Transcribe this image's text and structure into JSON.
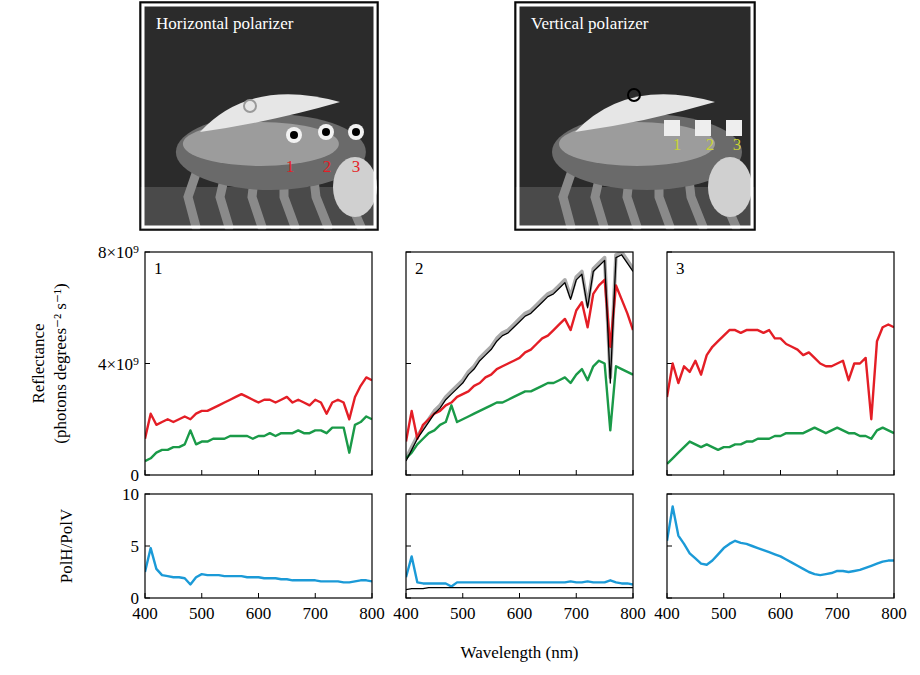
{
  "photos": [
    {
      "title": "Horizontal polarizer",
      "labels": [
        "1",
        "2",
        "3"
      ],
      "color": "#e41e26"
    },
    {
      "title": "Vertical polarizer",
      "labels": [
        "1",
        "2",
        "3"
      ],
      "color": "#c9d236"
    }
  ],
  "chart_data": [
    {
      "type": "line",
      "title": "1",
      "ylabel": "Reflectance (photons degrees⁻² s⁻¹)",
      "tick_labels": "y",
      "x": [
        400,
        410,
        420,
        430,
        440,
        450,
        460,
        470,
        480,
        490,
        500,
        510,
        520,
        530,
        540,
        550,
        560,
        570,
        580,
        590,
        600,
        610,
        620,
        630,
        640,
        650,
        660,
        670,
        680,
        690,
        700,
        710,
        720,
        730,
        740,
        750,
        760,
        770,
        780,
        790,
        800
      ],
      "xlim": [
        400,
        800
      ],
      "xticks": [
        400,
        500,
        600,
        700,
        800
      ],
      "ylim": [
        0,
        8000000000.0
      ],
      "yticks": [
        0,
        {
          "value": 4000000000.0,
          "label": "4×10⁹"
        },
        {
          "value": 8000000000.0,
          "label": "8×10⁹"
        }
      ],
      "series": [
        {
          "color": "#e41e26",
          "values": [
            1300000000.0,
            2200000000.0,
            1800000000.0,
            1900000000.0,
            2000000000.0,
            1900000000.0,
            2000000000.0,
            2100000000.0,
            2000000000.0,
            2200000000.0,
            2300000000.0,
            2300000000.0,
            2400000000.0,
            2500000000.0,
            2600000000.0,
            2700000000.0,
            2800000000.0,
            2900000000.0,
            2800000000.0,
            2700000000.0,
            2600000000.0,
            2700000000.0,
            2700000000.0,
            2600000000.0,
            2700000000.0,
            2800000000.0,
            2600000000.0,
            2700000000.0,
            2600000000.0,
            2500000000.0,
            2700000000.0,
            2600000000.0,
            2200000000.0,
            2600000000.0,
            2700000000.0,
            2600000000.0,
            2000000000.0,
            2800000000.0,
            3200000000.0,
            3500000000.0,
            3400000000.0
          ]
        },
        {
          "color": "#1a9a48",
          "values": [
            500000000.0,
            600000000.0,
            800000000.0,
            900000000.0,
            900000000.0,
            1000000000.0,
            1000000000.0,
            1100000000.0,
            1600000000.0,
            1100000000.0,
            1200000000.0,
            1200000000.0,
            1300000000.0,
            1300000000.0,
            1300000000.0,
            1400000000.0,
            1400000000.0,
            1400000000.0,
            1400000000.0,
            1300000000.0,
            1400000000.0,
            1400000000.0,
            1500000000.0,
            1400000000.0,
            1500000000.0,
            1500000000.0,
            1500000000.0,
            1600000000.0,
            1500000000.0,
            1500000000.0,
            1600000000.0,
            1600000000.0,
            1500000000.0,
            1700000000.0,
            1700000000.0,
            1700000000.0,
            800000000.0,
            1800000000.0,
            1900000000.0,
            2100000000.0,
            2000000000.0
          ]
        }
      ]
    },
    {
      "type": "line",
      "title": "2",
      "tick_labels": false,
      "x": [
        400,
        410,
        420,
        430,
        440,
        450,
        460,
        470,
        480,
        490,
        500,
        510,
        520,
        530,
        540,
        550,
        560,
        570,
        580,
        590,
        600,
        610,
        620,
        630,
        640,
        650,
        660,
        670,
        680,
        690,
        700,
        710,
        720,
        730,
        740,
        750,
        760,
        770,
        780,
        790,
        800
      ],
      "xlim": [
        400,
        800
      ],
      "xticks": [
        400,
        500,
        600,
        700,
        800
      ],
      "ylim": [
        0,
        8000000000.0
      ],
      "yticks": [
        0,
        4000000000.0,
        8000000000.0
      ],
      "series": [
        {
          "color": "#aaaaaa",
          "values": [
            600000000.0,
            1000000000.0,
            1400000000.0,
            1700000000.0,
            2000000000.0,
            2300000000.0,
            2500000000.0,
            2800000000.0,
            3000000000.0,
            3200000000.0,
            3400000000.0,
            3700000000.0,
            3900000000.0,
            4200000000.0,
            4400000000.0,
            4600000000.0,
            4900000000.0,
            5100000000.0,
            5200000000.0,
            5400000000.0,
            5600000000.0,
            5800000000.0,
            5900000000.0,
            6100000000.0,
            6300000000.0,
            6500000000.0,
            6600000000.0,
            6800000000.0,
            7000000000.0,
            6400000000.0,
            7100000000.0,
            7300000000.0,
            6100000000.0,
            7400000000.0,
            7600000000.0,
            7800000000.0,
            3500000000.0,
            7900000000.0,
            8000000000.0,
            7700000000.0,
            7400000000.0
          ]
        },
        {
          "color": "#e41e26",
          "values": [
            1200000000.0,
            2300000000.0,
            1300000000.0,
            1800000000.0,
            2000000000.0,
            2200000000.0,
            2300000000.0,
            2500000000.0,
            2600000000.0,
            2800000000.0,
            2900000000.0,
            3000000000.0,
            3200000000.0,
            3300000000.0,
            3500000000.0,
            3600000000.0,
            3800000000.0,
            3900000000.0,
            4000000000.0,
            4100000000.0,
            4200000000.0,
            4400000000.0,
            4500000000.0,
            4700000000.0,
            4900000000.0,
            5000000000.0,
            5200000000.0,
            5400000000.0,
            5600000000.0,
            5200000000.0,
            5900000000.0,
            6200000000.0,
            5300000000.0,
            6500000000.0,
            6800000000.0,
            7000000000.0,
            4600000000.0,
            6800000000.0,
            6300000000.0,
            5800000000.0,
            5200000000.0
          ]
        },
        {
          "color": "#1a9a48",
          "values": [
            600000000.0,
            800000000.0,
            1100000000.0,
            1300000000.0,
            1500000000.0,
            1600000000.0,
            1800000000.0,
            1900000000.0,
            2500000000.0,
            1900000000.0,
            2000000000.0,
            2100000000.0,
            2200000000.0,
            2300000000.0,
            2400000000.0,
            2500000000.0,
            2600000000.0,
            2600000000.0,
            2700000000.0,
            2800000000.0,
            2900000000.0,
            3000000000.0,
            3000000000.0,
            3100000000.0,
            3200000000.0,
            3300000000.0,
            3300000000.0,
            3400000000.0,
            3500000000.0,
            3300000000.0,
            3600000000.0,
            3800000000.0,
            3400000000.0,
            3900000000.0,
            4100000000.0,
            4000000000.0,
            1600000000.0,
            3900000000.0,
            3800000000.0,
            3700000000.0,
            3600000000.0
          ]
        },
        {
          "color": "#000000",
          "values": [
            500000000.0,
            900000000.0,
            1300000000.0,
            1600000000.0,
            1900000000.0,
            2200000000.0,
            2400000000.0,
            2700000000.0,
            2900000000.0,
            3100000000.0,
            3300000000.0,
            3600000000.0,
            3800000000.0,
            4100000000.0,
            4300000000.0,
            4500000000.0,
            4800000000.0,
            5000000000.0,
            5100000000.0,
            5300000000.0,
            5500000000.0,
            5700000000.0,
            5800000000.0,
            6000000000.0,
            6200000000.0,
            6400000000.0,
            6500000000.0,
            6700000000.0,
            6900000000.0,
            6300000000.0,
            7000000000.0,
            7200000000.0,
            6000000000.0,
            7300000000.0,
            7500000000.0,
            7700000000.0,
            3300000000.0,
            7800000000.0,
            7900000000.0,
            7600000000.0,
            7300000000.0
          ]
        }
      ]
    },
    {
      "type": "line",
      "title": "3",
      "tick_labels": false,
      "x": [
        400,
        410,
        420,
        430,
        440,
        450,
        460,
        470,
        480,
        490,
        500,
        510,
        520,
        530,
        540,
        550,
        560,
        570,
        580,
        590,
        600,
        610,
        620,
        630,
        640,
        650,
        660,
        670,
        680,
        690,
        700,
        710,
        720,
        730,
        740,
        750,
        760,
        770,
        780,
        790,
        800
      ],
      "xlim": [
        400,
        800
      ],
      "xticks": [
        400,
        500,
        600,
        700,
        800
      ],
      "ylim": [
        0,
        8000000000.0
      ],
      "yticks": [
        0,
        4000000000.0,
        8000000000.0
      ],
      "series": [
        {
          "color": "#e41e26",
          "values": [
            2800000000.0,
            4000000000.0,
            3300000000.0,
            3900000000.0,
            3700000000.0,
            4100000000.0,
            3600000000.0,
            4300000000.0,
            4600000000.0,
            4800000000.0,
            5000000000.0,
            5200000000.0,
            5200000000.0,
            5100000000.0,
            5200000000.0,
            5200000000.0,
            5200000000.0,
            5100000000.0,
            5200000000.0,
            4900000000.0,
            4900000000.0,
            4700000000.0,
            4600000000.0,
            4500000000.0,
            4300000000.0,
            4400000000.0,
            4200000000.0,
            4000000000.0,
            3900000000.0,
            3900000000.0,
            4000000000.0,
            4100000000.0,
            3400000000.0,
            4000000000.0,
            4000000000.0,
            4200000000.0,
            2000000000.0,
            4800000000.0,
            5300000000.0,
            5400000000.0,
            5300000000.0
          ]
        },
        {
          "color": "#1a9a48",
          "values": [
            400000000.0,
            600000000.0,
            800000000.0,
            1000000000.0,
            1200000000.0,
            1100000000.0,
            1000000000.0,
            1100000000.0,
            1000000000.0,
            900000000.0,
            1000000000.0,
            1000000000.0,
            1100000000.0,
            1100000000.0,
            1200000000.0,
            1200000000.0,
            1300000000.0,
            1300000000.0,
            1300000000.0,
            1400000000.0,
            1400000000.0,
            1500000000.0,
            1500000000.0,
            1500000000.0,
            1500000000.0,
            1600000000.0,
            1700000000.0,
            1600000000.0,
            1500000000.0,
            1600000000.0,
            1700000000.0,
            1600000000.0,
            1500000000.0,
            1500000000.0,
            1400000000.0,
            1400000000.0,
            1300000000.0,
            1600000000.0,
            1700000000.0,
            1600000000.0,
            1500000000.0
          ]
        }
      ]
    },
    {
      "type": "line",
      "ylabel": "PolH/PolV",
      "tick_labels": true,
      "x": [
        400,
        410,
        420,
        430,
        440,
        450,
        460,
        470,
        480,
        490,
        500,
        510,
        520,
        530,
        540,
        550,
        560,
        570,
        580,
        590,
        600,
        610,
        620,
        630,
        640,
        650,
        660,
        670,
        680,
        690,
        700,
        710,
        720,
        730,
        740,
        750,
        760,
        770,
        780,
        790,
        800
      ],
      "xlim": [
        400,
        800
      ],
      "xticks": [
        400,
        500,
        600,
        700,
        800
      ],
      "ylim": [
        0,
        10
      ],
      "yticks": [
        0,
        5,
        10
      ],
      "series": [
        {
          "color": "#1b9ad7",
          "values": [
            2.5,
            4.8,
            2.8,
            2.2,
            2.1,
            2.0,
            2.0,
            1.9,
            1.3,
            2.0,
            2.3,
            2.2,
            2.2,
            2.2,
            2.1,
            2.1,
            2.1,
            2.1,
            2.0,
            2.0,
            2.0,
            1.9,
            1.9,
            1.9,
            1.8,
            1.8,
            1.7,
            1.7,
            1.7,
            1.7,
            1.7,
            1.6,
            1.6,
            1.6,
            1.6,
            1.5,
            1.5,
            1.6,
            1.7,
            1.7,
            1.6
          ]
        }
      ]
    },
    {
      "type": "line",
      "xlabel": "Wavelength (nm)",
      "tick_labels": "x",
      "x": [
        400,
        410,
        420,
        430,
        440,
        450,
        460,
        470,
        480,
        490,
        500,
        510,
        520,
        530,
        540,
        550,
        560,
        570,
        580,
        590,
        600,
        610,
        620,
        630,
        640,
        650,
        660,
        670,
        680,
        690,
        700,
        710,
        720,
        730,
        740,
        750,
        760,
        770,
        780,
        790,
        800
      ],
      "xlim": [
        400,
        800
      ],
      "xticks": [
        400,
        500,
        600,
        700,
        800
      ],
      "ylim": [
        0,
        10
      ],
      "yticks": [
        0,
        5,
        10
      ],
      "series": [
        {
          "color": "#1b9ad7",
          "values": [
            2.0,
            4.0,
            1.5,
            1.4,
            1.4,
            1.4,
            1.4,
            1.4,
            1.1,
            1.5,
            1.5,
            1.5,
            1.5,
            1.5,
            1.5,
            1.5,
            1.5,
            1.5,
            1.5,
            1.5,
            1.5,
            1.5,
            1.5,
            1.5,
            1.5,
            1.5,
            1.5,
            1.5,
            1.5,
            1.6,
            1.5,
            1.5,
            1.6,
            1.5,
            1.5,
            1.5,
            1.7,
            1.5,
            1.4,
            1.4,
            1.3
          ]
        },
        {
          "color": "#000000",
          "values": [
            0.8,
            0.9,
            0.9,
            0.9,
            1.0,
            1.0,
            1.0,
            1.0,
            1.0,
            1.0,
            1.0,
            1.0,
            1.0,
            1.0,
            1.0,
            1.0,
            1.0,
            1.0,
            1.0,
            1.0,
            1.0,
            1.0,
            1.0,
            1.0,
            1.0,
            1.0,
            1.0,
            1.0,
            1.0,
            1.0,
            1.0,
            1.0,
            1.0,
            1.0,
            1.0,
            1.0,
            1.0,
            1.0,
            1.0,
            1.0,
            1.0
          ]
        }
      ]
    },
    {
      "type": "line",
      "tick_labels": "x",
      "x": [
        400,
        410,
        420,
        430,
        440,
        450,
        460,
        470,
        480,
        490,
        500,
        510,
        520,
        530,
        540,
        550,
        560,
        570,
        580,
        590,
        600,
        610,
        620,
        630,
        640,
        650,
        660,
        670,
        680,
        690,
        700,
        710,
        720,
        730,
        740,
        750,
        760,
        770,
        780,
        790,
        800
      ],
      "xlim": [
        400,
        800
      ],
      "xticks": [
        400,
        500,
        600,
        700,
        800
      ],
      "ylim": [
        0,
        10
      ],
      "yticks": [
        0,
        5,
        10
      ],
      "series": [
        {
          "color": "#1b9ad7",
          "values": [
            5.5,
            8.8,
            6.0,
            5.2,
            4.3,
            3.8,
            3.3,
            3.2,
            3.6,
            4.2,
            4.8,
            5.2,
            5.5,
            5.3,
            5.2,
            5.0,
            4.8,
            4.6,
            4.4,
            4.2,
            4.0,
            3.7,
            3.4,
            3.1,
            2.8,
            2.5,
            2.3,
            2.2,
            2.3,
            2.4,
            2.6,
            2.6,
            2.5,
            2.6,
            2.7,
            2.9,
            3.1,
            3.3,
            3.5,
            3.6,
            3.6
          ]
        }
      ]
    }
  ]
}
